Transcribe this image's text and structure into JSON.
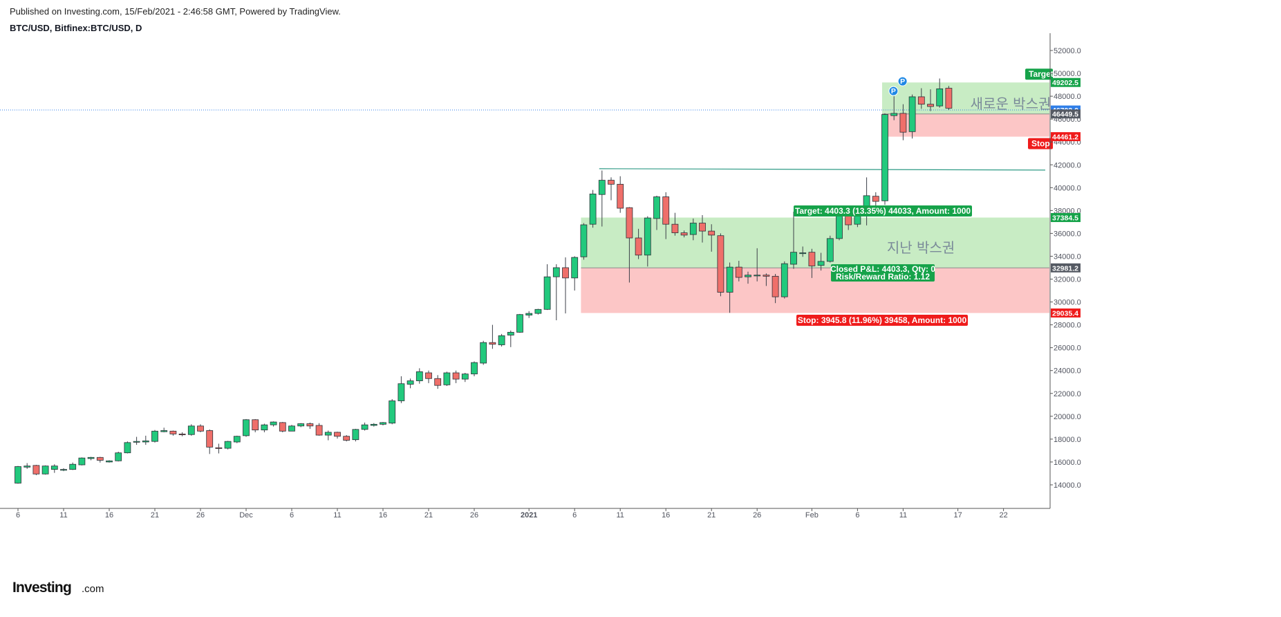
{
  "header": {
    "published": "Published on Investing.com, 15/Feb/2021 - 2:46:58 GMT, Powered by TradingView.",
    "symbol": "BTC/USD, Bitfinex:BTC/USD, D"
  },
  "logo": {
    "main": "Investing",
    "suffix": ".com"
  },
  "colors": {
    "up": "#22c97d",
    "down": "#ef6f6a",
    "wick": "#3b3f48",
    "target_zone": "#c8ecc4",
    "stop_zone": "#fcc6c6",
    "green_label": "#16a34a",
    "red_label": "#ef1c1c",
    "last_price": "#2f7ee8",
    "grey_label": "#555a63",
    "h_line": "#2e9a85"
  },
  "chart_data": {
    "type": "candlestick",
    "title": "BTC/USD, Bitfinex:BTC/USD, D",
    "ylim": [
      13000,
      53000
    ],
    "y_ticks": [
      14000,
      16000,
      18000,
      20000,
      22000,
      24000,
      26000,
      28000,
      30000,
      32000,
      34000,
      36000,
      38000,
      40000,
      42000,
      44000,
      46000,
      48000,
      50000,
      52000
    ],
    "y_tick_labels": [
      "14000.0",
      "16000.0",
      "18000.0",
      "20000.0",
      "22000.0",
      "24000.0",
      "26000.0",
      "28000.0",
      "30000.0",
      "32000.0",
      "34000.0",
      "36000.0",
      "38000.0",
      "40000.0",
      "42000.0",
      "44000.0",
      "46000.0",
      "48000.0",
      "50000.0",
      "52000.0"
    ],
    "x_ticks": [
      {
        "i": 0,
        "label": "6"
      },
      {
        "i": 5,
        "label": "11"
      },
      {
        "i": 10,
        "label": "16"
      },
      {
        "i": 15,
        "label": "21"
      },
      {
        "i": 20,
        "label": "26"
      },
      {
        "i": 25,
        "label": "Dec"
      },
      {
        "i": 30,
        "label": "6"
      },
      {
        "i": 35,
        "label": "11"
      },
      {
        "i": 40,
        "label": "16"
      },
      {
        "i": 45,
        "label": "21"
      },
      {
        "i": 50,
        "label": "26"
      },
      {
        "i": 56,
        "label": "2021"
      },
      {
        "i": 61,
        "label": "6"
      },
      {
        "i": 66,
        "label": "11"
      },
      {
        "i": 71,
        "label": "16"
      },
      {
        "i": 76,
        "label": "21"
      },
      {
        "i": 81,
        "label": "26"
      },
      {
        "i": 87,
        "label": "Feb"
      },
      {
        "i": 92,
        "label": "6"
      },
      {
        "i": 97,
        "label": "11"
      },
      {
        "i": 103,
        "label": "17"
      },
      {
        "i": 108,
        "label": "22"
      }
    ],
    "candles": [
      [
        14150,
        15600,
        14100,
        15650
      ],
      [
        15550,
        15650,
        15400,
        15900
      ],
      [
        15700,
        14950,
        14850,
        15750
      ],
      [
        14950,
        15650,
        14900,
        15700
      ],
      [
        15350,
        15650,
        15050,
        15800
      ],
      [
        15300,
        15350,
        15200,
        15450
      ],
      [
        15350,
        15800,
        15300,
        15950
      ],
      [
        15750,
        16350,
        15700,
        16400
      ],
      [
        16300,
        16400,
        16150,
        16450
      ],
      [
        16400,
        16150,
        15950,
        16450
      ],
      [
        16000,
        16100,
        15950,
        16150
      ],
      [
        16100,
        16800,
        16050,
        16900
      ],
      [
        16800,
        17700,
        16750,
        17800
      ],
      [
        17750,
        17800,
        17500,
        18200
      ],
      [
        17750,
        17850,
        17500,
        18300
      ],
      [
        17800,
        18700,
        17700,
        18800
      ],
      [
        18650,
        18750,
        18600,
        19000
      ],
      [
        18700,
        18450,
        18300,
        18750
      ],
      [
        18450,
        18400,
        18250,
        18600
      ],
      [
        18400,
        19150,
        18300,
        19300
      ],
      [
        19150,
        18700,
        18600,
        19300
      ],
      [
        18750,
        17300,
        16700,
        18850
      ],
      [
        17250,
        17200,
        16750,
        17600
      ],
      [
        17200,
        17800,
        17100,
        17850
      ],
      [
        17750,
        18250,
        17650,
        18300
      ],
      [
        18300,
        19700,
        18200,
        19750
      ],
      [
        19700,
        18800,
        18600,
        19750
      ],
      [
        18800,
        19250,
        18600,
        19350
      ],
      [
        19250,
        19500,
        19100,
        19550
      ],
      [
        19450,
        18700,
        18600,
        19500
      ],
      [
        18700,
        19150,
        18700,
        19250
      ],
      [
        19150,
        19350,
        19050,
        19400
      ],
      [
        19350,
        19150,
        18900,
        19450
      ],
      [
        19200,
        18350,
        18300,
        19400
      ],
      [
        18350,
        18600,
        17900,
        18750
      ],
      [
        18600,
        18250,
        18050,
        18650
      ],
      [
        18250,
        17900,
        17800,
        18350
      ],
      [
        17950,
        18850,
        17800,
        18900
      ],
      [
        18850,
        19250,
        18750,
        19450
      ],
      [
        19200,
        19300,
        19100,
        19400
      ],
      [
        19300,
        19450,
        19200,
        19500
      ],
      [
        19400,
        21350,
        19300,
        21500
      ],
      [
        21350,
        22850,
        21150,
        23500
      ],
      [
        22800,
        23100,
        22450,
        23300
      ],
      [
        23100,
        23900,
        22850,
        24200
      ],
      [
        23800,
        23300,
        22900,
        24000
      ],
      [
        23300,
        22700,
        22400,
        23600
      ],
      [
        22750,
        23800,
        22650,
        23900
      ],
      [
        23800,
        23250,
        22900,
        24000
      ],
      [
        23250,
        23700,
        23000,
        23800
      ],
      [
        23700,
        24700,
        23500,
        24800
      ],
      [
        24650,
        26450,
        24500,
        26600
      ],
      [
        26450,
        26300,
        25900,
        28000
      ],
      [
        26250,
        27050,
        26100,
        27200
      ],
      [
        27100,
        27350,
        26050,
        27500
      ],
      [
        27350,
        28900,
        27300,
        28950
      ],
      [
        28850,
        29000,
        28600,
        29200
      ],
      [
        29000,
        29350,
        28900,
        29400
      ],
      [
        29350,
        32200,
        29300,
        33300
      ],
      [
        32200,
        33000,
        28400,
        33300
      ],
      [
        33000,
        32100,
        29000,
        33900
      ],
      [
        32100,
        33900,
        31000,
        34000
      ],
      [
        33950,
        36750,
        33700,
        36900
      ],
      [
        36800,
        39450,
        36500,
        39800
      ],
      [
        39400,
        40650,
        36600,
        41500
      ],
      [
        40650,
        40300,
        38900,
        40900
      ],
      [
        40300,
        38200,
        37800,
        41000
      ],
      [
        38250,
        35600,
        31700,
        38300
      ],
      [
        35600,
        34100,
        33750,
        36400
      ],
      [
        34100,
        37350,
        33100,
        37500
      ],
      [
        37300,
        39200,
        36300,
        39300
      ],
      [
        39200,
        36800,
        35500,
        39600
      ],
      [
        36800,
        36050,
        35800,
        37800
      ],
      [
        36050,
        35850,
        35650,
        36250
      ],
      [
        35900,
        36900,
        35400,
        37300
      ],
      [
        36900,
        36200,
        35200,
        37600
      ],
      [
        36200,
        35850,
        34400,
        36800
      ],
      [
        35800,
        30850,
        30500,
        36000
      ],
      [
        30850,
        33050,
        29050,
        33450
      ],
      [
        33050,
        32150,
        31800,
        33600
      ],
      [
        32200,
        32350,
        31600,
        32650
      ],
      [
        32300,
        32350,
        31800,
        34700
      ],
      [
        32350,
        32250,
        31400,
        32500
      ],
      [
        32250,
        30450,
        29900,
        32450
      ],
      [
        30450,
        33350,
        30300,
        33550
      ],
      [
        33300,
        34350,
        32900,
        37900
      ],
      [
        34250,
        34300,
        33950,
        34850
      ],
      [
        34350,
        33150,
        32100,
        34650
      ],
      [
        33200,
        33550,
        32750,
        34300
      ],
      [
        33550,
        35550,
        33450,
        35800
      ],
      [
        35550,
        37600,
        35400,
        37900
      ],
      [
        37600,
        36750,
        36300,
        38000
      ],
      [
        36800,
        37700,
        36550,
        37950
      ],
      [
        37650,
        39300,
        36700,
        40900
      ],
      [
        39250,
        38800,
        38400,
        39600
      ],
      [
        38850,
        46400,
        38500,
        46500
      ],
      [
        46300,
        46500,
        45900,
        48000
      ],
      [
        46500,
        44850,
        44150,
        47300
      ],
      [
        44900,
        47950,
        44300,
        48150
      ],
      [
        47950,
        47300,
        46900,
        48700
      ],
      [
        47300,
        47100,
        46700,
        48600
      ],
      [
        47150,
        48650,
        47000,
        49550
      ],
      [
        48700,
        46950,
        46800,
        48900
      ]
    ],
    "position_1": {
      "entry": 32981.2,
      "target": 37384.5,
      "stop": 29035.4,
      "x_start": 62,
      "x_end": 110,
      "target_label": "Target: 4403.3 (13.35%) 44033, Amount: 1000",
      "stop_label": "Stop: 3945.8 (11.96%) 39458, Amount: 1000",
      "closed_label": "Closed P&L: 4403.3, Qty: 0",
      "rr_label": "Risk/Reward Ratio: 1.12",
      "zone_text": "지난 박스권"
    },
    "position_2": {
      "entry": 46449.5,
      "target": 49202.5,
      "stop": 44461.2,
      "x_start": 95,
      "x_end": 110,
      "target_label": "Target",
      "stop_label": "Stop",
      "zone_text": "새로운 박스권"
    },
    "horizontal_line": {
      "price": 41600,
      "x_start": 64,
      "x_end": 110
    },
    "last_price": 46793.0,
    "price_tags": [
      {
        "label": "49202.5",
        "price": 49202.5,
        "color_key": "green_label"
      },
      {
        "label": "46793.0",
        "price": 46793.0,
        "color_key": "last_price"
      },
      {
        "label": "46449.5",
        "price": 46449.5,
        "color_key": "grey_label"
      },
      {
        "label": "44461.2",
        "price": 44461.2,
        "color_key": "red_label"
      },
      {
        "label": "37384.5",
        "price": 37384.5,
        "color_key": "green_label"
      },
      {
        "label": "32981.2",
        "price": 32981.2,
        "color_key": "grey_label"
      },
      {
        "label": "29035.4",
        "price": 29035.4,
        "color_key": "red_label"
      }
    ],
    "markers": [
      {
        "i": 97,
        "price": 48150,
        "label": "P"
      },
      {
        "i": 98,
        "price": 49000,
        "label": "P"
      }
    ]
  }
}
